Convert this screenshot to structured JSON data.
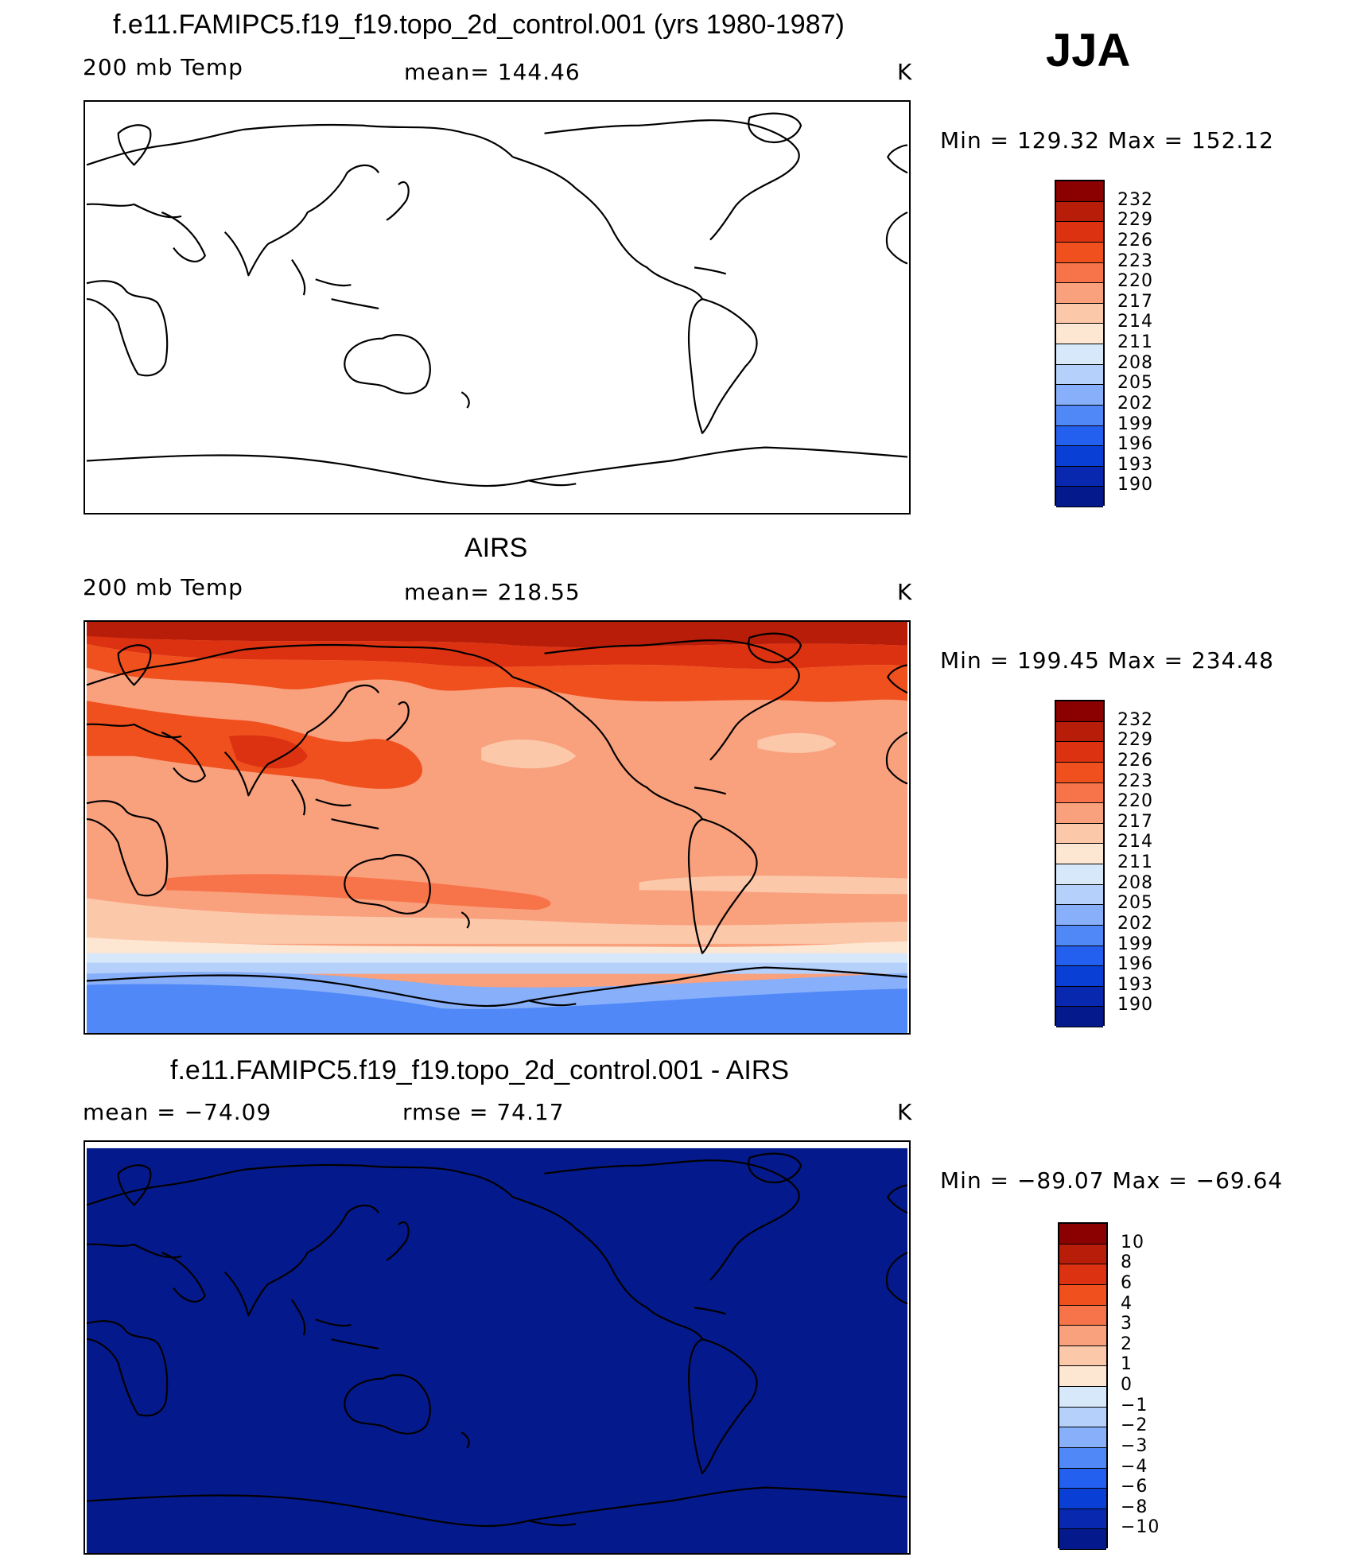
{
  "season": "JJA",
  "panels": [
    {
      "id": "model",
      "title": "f.e11.FAMIPC5.f19_f19.topo_2d_control.001 (yrs 1980-1987)",
      "left_label": "200 mb Temp",
      "center_label": "mean=  144.46",
      "units": "K",
      "minmax": "Min  =  129.32  Max  =  152.12",
      "colorbar_levels": [
        "232",
        "229",
        "226",
        "223",
        "220",
        "217",
        "214",
        "211",
        "208",
        "205",
        "202",
        "199",
        "196",
        "193",
        "190"
      ]
    },
    {
      "id": "obs",
      "title": "AIRS",
      "left_label": "200 mb Temp",
      "center_label": "mean=  218.55",
      "units": "K",
      "minmax": "Min  =  199.45  Max  =  234.48",
      "colorbar_levels": [
        "232",
        "229",
        "226",
        "223",
        "220",
        "217",
        "214",
        "211",
        "208",
        "205",
        "202",
        "199",
        "196",
        "193",
        "190"
      ]
    },
    {
      "id": "diff",
      "title": "f.e11.FAMIPC5.f19_f19.topo_2d_control.001 - AIRS",
      "left_label": "mean  =  −74.09",
      "center_label": "rmse  =    74.17",
      "units": "K",
      "minmax": "Min  =  −89.07  Max  =  −69.64",
      "colorbar_levels": [
        "10",
        "8",
        "6",
        "4",
        "3",
        "2",
        "1",
        "0",
        "−1",
        "−2",
        "−3",
        "−4",
        "−6",
        "−8",
        "−10"
      ]
    }
  ],
  "colors": {
    "scale": [
      "#8b0000",
      "#b81d0a",
      "#dc3212",
      "#f0501e",
      "#f7744a",
      "#f9a07d",
      "#fcc8aa",
      "#fde6d2",
      "#d7e8fb",
      "#b4d0fb",
      "#87affa",
      "#5088f8",
      "#2460ef",
      "#0a3fd6",
      "#0828b0",
      "#041a8c"
    ],
    "diff_background": "#041a8c"
  }
}
